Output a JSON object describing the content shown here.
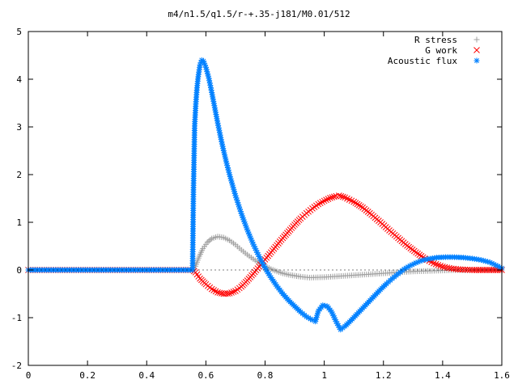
{
  "chart_data": {
    "type": "scatter",
    "title": "m4/n1.5/q1.5/r-+.35-j181/M0.01/512",
    "xlabel": "",
    "ylabel": "",
    "xlim": [
      0,
      1.6
    ],
    "ylim": [
      -2,
      5
    ],
    "x_ticks": [
      "0",
      "0.2",
      "0.4",
      "0.6",
      "0.8",
      "1",
      "1.2",
      "1.4",
      "1.6"
    ],
    "y_ticks": [
      "-2",
      "-1",
      "0",
      "1",
      "2",
      "3",
      "4",
      "5"
    ],
    "grid": false,
    "legend_position": "top-right",
    "series": [
      {
        "name": "R stress",
        "marker": "plus",
        "color": "#a0a0a0",
        "points": [
          [
            0,
            0
          ],
          [
            0.555,
            0
          ],
          [
            0.565,
            0.08
          ],
          [
            0.575,
            0.25
          ],
          [
            0.59,
            0.45
          ],
          [
            0.605,
            0.58
          ],
          [
            0.62,
            0.66
          ],
          [
            0.64,
            0.7
          ],
          [
            0.66,
            0.68
          ],
          [
            0.68,
            0.62
          ],
          [
            0.7,
            0.53
          ],
          [
            0.72,
            0.42
          ],
          [
            0.74,
            0.32
          ],
          [
            0.76,
            0.23
          ],
          [
            0.78,
            0.15
          ],
          [
            0.8,
            0.08
          ],
          [
            0.82,
            0.02
          ],
          [
            0.84,
            -0.03
          ],
          [
            0.86,
            -0.07
          ],
          [
            0.88,
            -0.1
          ],
          [
            0.9,
            -0.12
          ],
          [
            0.92,
            -0.14
          ],
          [
            0.95,
            -0.16
          ],
          [
            1.0,
            -0.15
          ],
          [
            1.05,
            -0.13
          ],
          [
            1.1,
            -0.11
          ],
          [
            1.15,
            -0.09
          ],
          [
            1.2,
            -0.07
          ],
          [
            1.25,
            -0.05
          ],
          [
            1.3,
            -0.03
          ],
          [
            1.35,
            -0.02
          ],
          [
            1.4,
            -0.01
          ],
          [
            1.45,
            0
          ],
          [
            1.5,
            0
          ],
          [
            1.55,
            0
          ],
          [
            1.6,
            0
          ]
        ]
      },
      {
        "name": "G work",
        "marker": "cross",
        "color": "#ff0000",
        "points": [
          [
            0,
            0
          ],
          [
            0.555,
            0
          ],
          [
            0.565,
            -0.05
          ],
          [
            0.58,
            -0.18
          ],
          [
            0.6,
            -0.3
          ],
          [
            0.62,
            -0.4
          ],
          [
            0.64,
            -0.47
          ],
          [
            0.66,
            -0.5
          ],
          [
            0.68,
            -0.49
          ],
          [
            0.7,
            -0.44
          ],
          [
            0.72,
            -0.35
          ],
          [
            0.74,
            -0.22
          ],
          [
            0.76,
            -0.08
          ],
          [
            0.78,
            0.07
          ],
          [
            0.8,
            0.22
          ],
          [
            0.82,
            0.37
          ],
          [
            0.84,
            0.52
          ],
          [
            0.86,
            0.67
          ],
          [
            0.88,
            0.81
          ],
          [
            0.9,
            0.95
          ],
          [
            0.92,
            1.08
          ],
          [
            0.94,
            1.19
          ],
          [
            0.96,
            1.29
          ],
          [
            0.98,
            1.38
          ],
          [
            1.0,
            1.45
          ],
          [
            1.02,
            1.51
          ],
          [
            1.04,
            1.55
          ],
          [
            1.05,
            1.56
          ],
          [
            1.07,
            1.52
          ],
          [
            1.1,
            1.43
          ],
          [
            1.13,
            1.31
          ],
          [
            1.16,
            1.16
          ],
          [
            1.19,
            1.0
          ],
          [
            1.22,
            0.83
          ],
          [
            1.25,
            0.67
          ],
          [
            1.28,
            0.51
          ],
          [
            1.31,
            0.37
          ],
          [
            1.34,
            0.24
          ],
          [
            1.37,
            0.14
          ],
          [
            1.4,
            0.07
          ],
          [
            1.43,
            0.03
          ],
          [
            1.46,
            0.01
          ],
          [
            1.5,
            0
          ],
          [
            1.55,
            0
          ],
          [
            1.6,
            0
          ]
        ]
      },
      {
        "name": "Acoustic flux",
        "marker": "star",
        "color": "#0080ff",
        "points": [
          [
            0,
            0
          ],
          [
            0.555,
            0
          ],
          [
            0.558,
            1.68
          ],
          [
            0.562,
            3.02
          ],
          [
            0.566,
            3.48
          ],
          [
            0.57,
            3.82
          ],
          [
            0.574,
            4.05
          ],
          [
            0.58,
            4.3
          ],
          [
            0.586,
            4.4
          ],
          [
            0.592,
            4.38
          ],
          [
            0.6,
            4.25
          ],
          [
            0.61,
            4.02
          ],
          [
            0.62,
            3.72
          ],
          [
            0.63,
            3.4
          ],
          [
            0.64,
            3.08
          ],
          [
            0.65,
            2.78
          ],
          [
            0.66,
            2.5
          ],
          [
            0.67,
            2.24
          ],
          [
            0.68,
            2.0
          ],
          [
            0.69,
            1.78
          ],
          [
            0.7,
            1.56
          ],
          [
            0.72,
            1.18
          ],
          [
            0.74,
            0.84
          ],
          [
            0.76,
            0.54
          ],
          [
            0.78,
            0.28
          ],
          [
            0.8,
            0.04
          ],
          [
            0.82,
            -0.16
          ],
          [
            0.84,
            -0.34
          ],
          [
            0.86,
            -0.5
          ],
          [
            0.88,
            -0.64
          ],
          [
            0.9,
            -0.76
          ],
          [
            0.92,
            -0.88
          ],
          [
            0.94,
            -0.98
          ],
          [
            0.96,
            -1.05
          ],
          [
            0.97,
            -1.08
          ],
          [
            0.98,
            -0.86
          ],
          [
            0.995,
            -0.74
          ],
          [
            1.01,
            -0.76
          ],
          [
            1.025,
            -0.88
          ],
          [
            1.04,
            -1.08
          ],
          [
            1.055,
            -1.25
          ],
          [
            1.07,
            -1.18
          ],
          [
            1.09,
            -1.06
          ],
          [
            1.11,
            -0.93
          ],
          [
            1.13,
            -0.8
          ],
          [
            1.15,
            -0.67
          ],
          [
            1.17,
            -0.54
          ],
          [
            1.19,
            -0.41
          ],
          [
            1.21,
            -0.29
          ],
          [
            1.23,
            -0.18
          ],
          [
            1.25,
            -0.08
          ],
          [
            1.27,
            0.02
          ],
          [
            1.29,
            0.09
          ],
          [
            1.31,
            0.15
          ],
          [
            1.33,
            0.2
          ],
          [
            1.35,
            0.23
          ],
          [
            1.38,
            0.26
          ],
          [
            1.41,
            0.27
          ],
          [
            1.44,
            0.27
          ],
          [
            1.47,
            0.26
          ],
          [
            1.5,
            0.24
          ],
          [
            1.53,
            0.21
          ],
          [
            1.56,
            0.16
          ],
          [
            1.58,
            0.1
          ],
          [
            1.6,
            0.04
          ]
        ]
      }
    ]
  }
}
